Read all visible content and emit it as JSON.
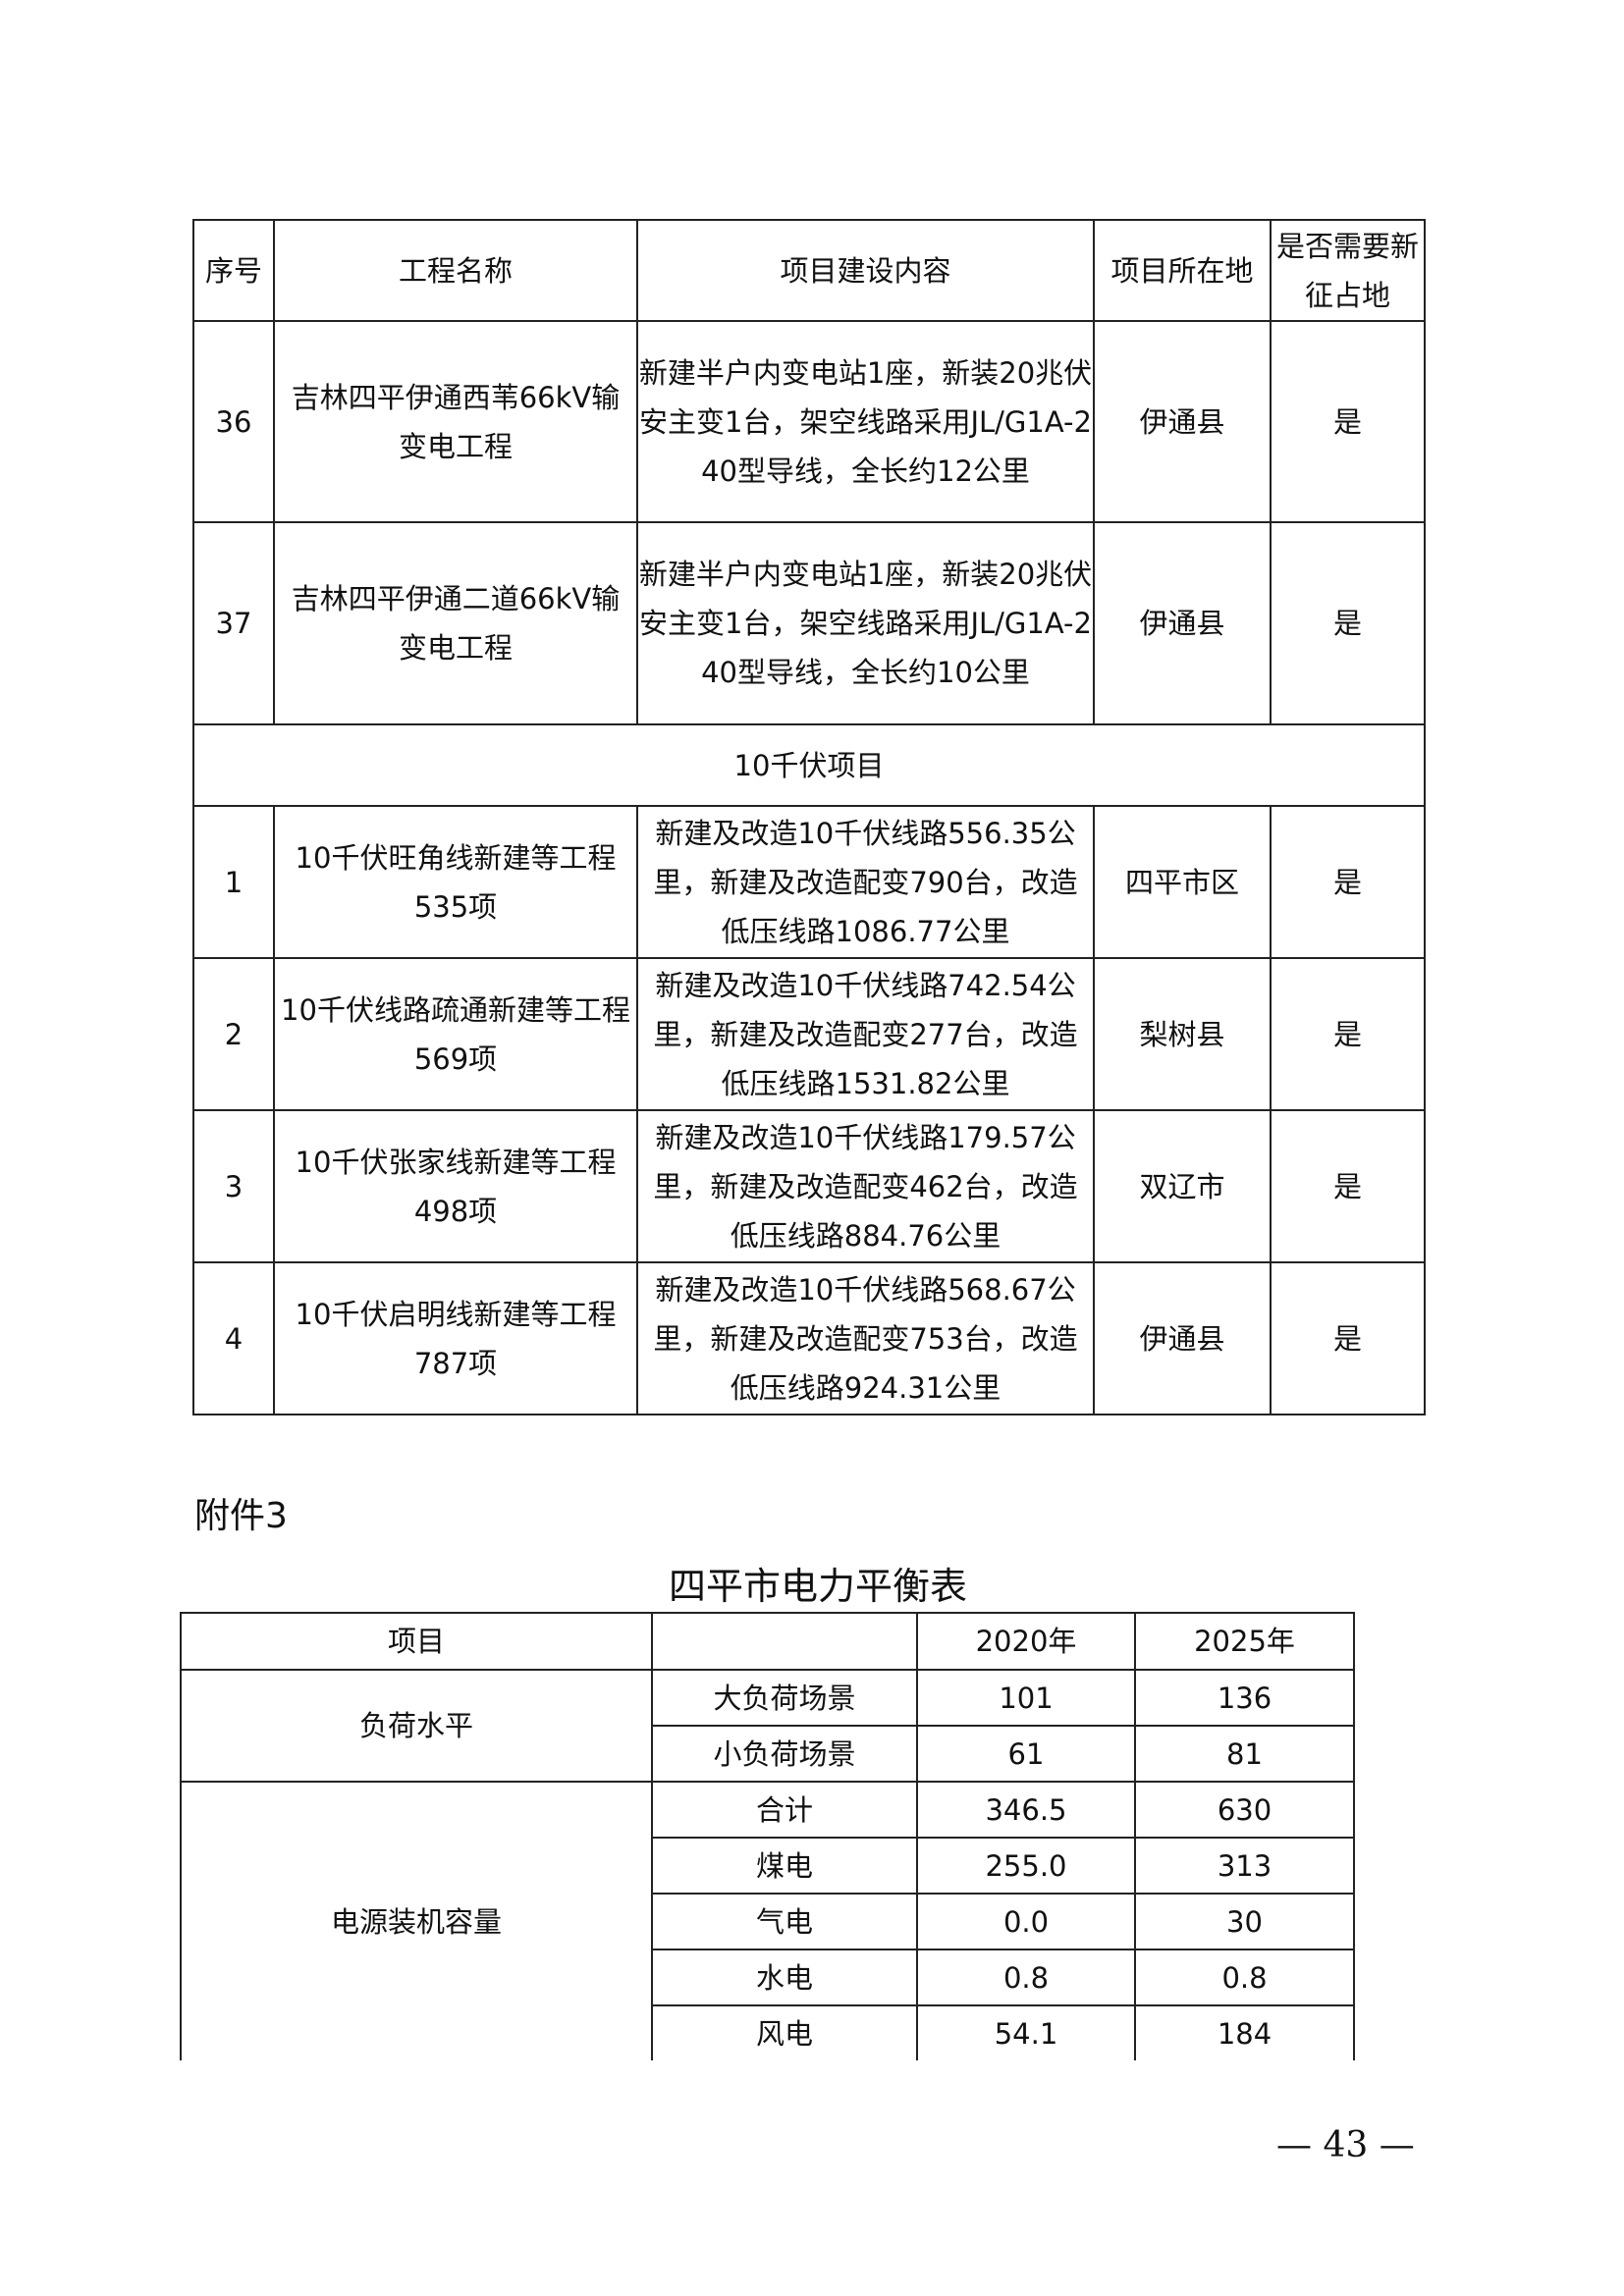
{
  "project_table": {
    "headers": [
      "序号",
      "工程名称",
      "项目建设内容",
      "项目所在地",
      "是否需要新征占地"
    ],
    "rows": [
      {
        "no": "36",
        "name": "吉林四平伊通西苇66kV输变电工程",
        "content": "新建半户内变电站1座，新装20兆伏安主变1台，架空线路采用JL/G1A-240型导线，全长约12公里",
        "location": "伊通县",
        "land": "是"
      },
      {
        "no": "37",
        "name": "吉林四平伊通二道66kV输变电工程",
        "content": "新建半户内变电站1座，新装20兆伏安主变1台，架空线路采用JL/G1A-240型导线，全长约10公里",
        "location": "伊通县",
        "land": "是"
      }
    ],
    "section_label": "10千伏项目",
    "rows_10kv": [
      {
        "no": "1",
        "name": "10千伏旺角线新建等工程535项",
        "content": "新建及改造10千伏线路556.35公里，新建及改造配变790台，改造低压线路1086.77公里",
        "location": "四平市区",
        "land": "是"
      },
      {
        "no": "2",
        "name": "10千伏线路疏通新建等工程569项",
        "content": "新建及改造10千伏线路742.54公里，新建及改造配变277台，改造低压线路1531.82公里",
        "location": "梨树县",
        "land": "是"
      },
      {
        "no": "3",
        "name": "10千伏张家线新建等工程498项",
        "content": "新建及改造10千伏线路179.57公里，新建及改造配变462台，改造低压线路884.76公里",
        "location": "双辽市",
        "land": "是"
      },
      {
        "no": "4",
        "name": "10千伏启明线新建等工程787项",
        "content": "新建及改造10千伏线路568.67公里，新建及改造配变753台，改造低压线路924.31公里",
        "location": "伊通县",
        "land": "是"
      }
    ]
  },
  "annex_label": "附件3",
  "balance_table": {
    "title": "四平市电力平衡表",
    "headers": [
      "项目",
      "",
      "2020年",
      "2025年"
    ],
    "groups": [
      {
        "label": "负荷水平",
        "rows": [
          {
            "item": "大负荷场景",
            "y2020": "101",
            "y2025": "136"
          },
          {
            "item": "小负荷场景",
            "y2020": "61",
            "y2025": "81"
          }
        ]
      },
      {
        "label": "电源装机容量",
        "rows": [
          {
            "item": "合计",
            "y2020": "346.5",
            "y2025": "630"
          },
          {
            "item": "煤电",
            "y2020": "255.0",
            "y2025": "313"
          },
          {
            "item": "气电",
            "y2020": "0.0",
            "y2025": "30"
          },
          {
            "item": "水电",
            "y2020": "0.8",
            "y2025": "0.8"
          },
          {
            "item": "风电",
            "y2020": "54.1",
            "y2025": "184"
          }
        ]
      }
    ]
  },
  "page_number": "— 43 —"
}
